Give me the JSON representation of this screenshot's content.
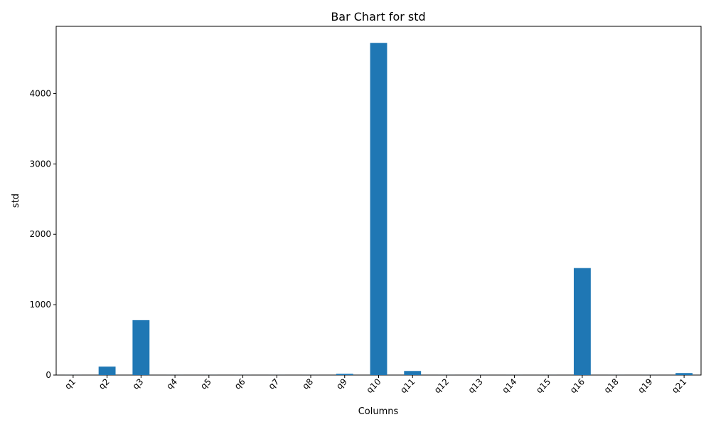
{
  "chart_data": {
    "type": "bar",
    "title": "Bar Chart for std",
    "xlabel": "Columns",
    "ylabel": "std",
    "categories": [
      "q1",
      "q2",
      "q3",
      "q4",
      "q5",
      "q6",
      "q7",
      "q8",
      "q9",
      "q10",
      "q11",
      "q12",
      "q13",
      "q14",
      "q15",
      "q16",
      "q18",
      "q19",
      "q21"
    ],
    "values": [
      0.5,
      120,
      780,
      0.5,
      0.5,
      0.5,
      0.5,
      0.5,
      18,
      4720,
      58,
      0.5,
      0.5,
      0.5,
      0.5,
      1520,
      0.5,
      0.5,
      28
    ],
    "ylim": [
      0,
      4955
    ],
    "yticks": [
      0,
      1000,
      2000,
      3000,
      4000
    ],
    "yticklabels": [
      "0",
      "1000",
      "2000",
      "3000",
      "4000"
    ],
    "bar_color": "#1f77b4",
    "grid": false,
    "legend": "none"
  }
}
